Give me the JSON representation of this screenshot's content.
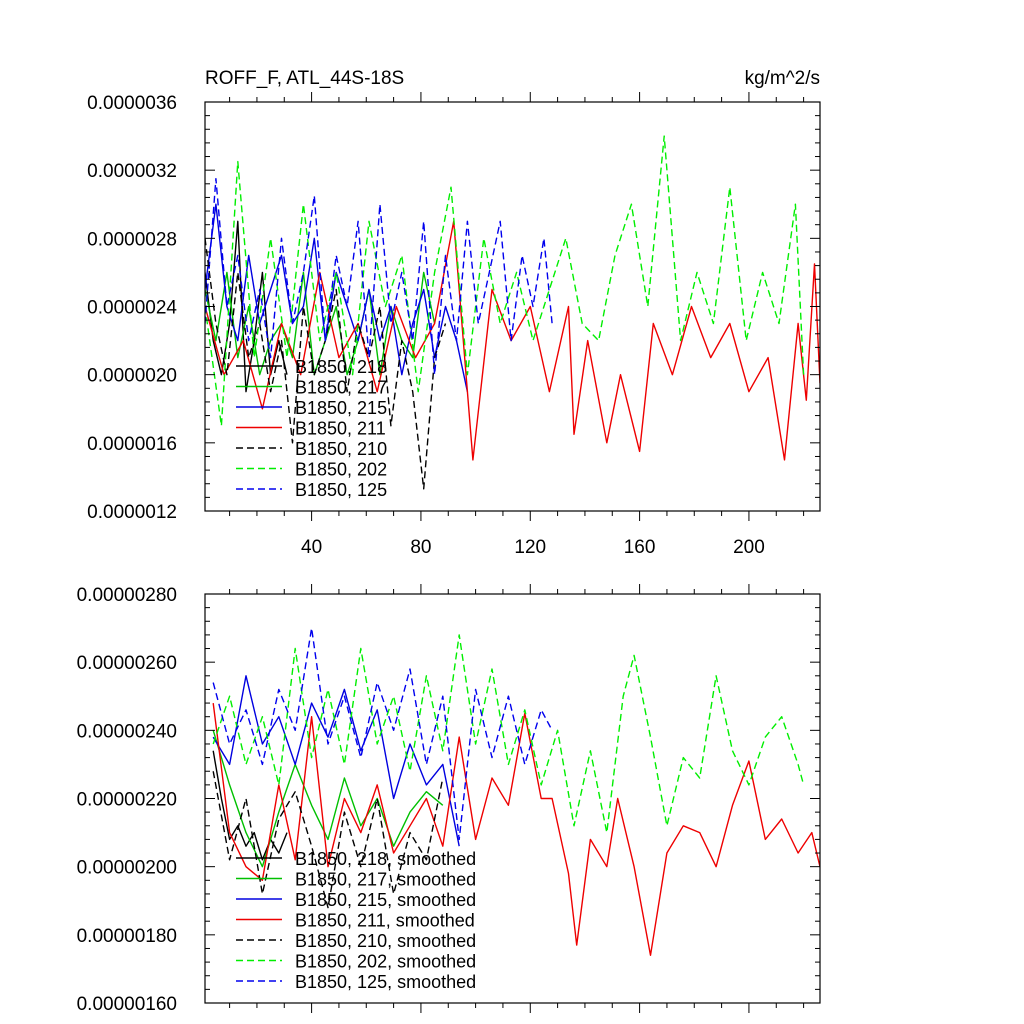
{
  "chart_data": [
    {
      "type": "line",
      "title": "ROFF_F, ATL_44S-18S",
      "units": "kg/m^2/s",
      "xlim": [
        1,
        226
      ],
      "ylim": [
        1.2e-06,
        3.6e-06
      ],
      "xticks": [
        40,
        80,
        120,
        160,
        200
      ],
      "xtick_labels": [
        "40",
        "80",
        "120",
        "160",
        "200"
      ],
      "yticks": [
        1.2e-06,
        1.6e-06,
        2e-06,
        2.4e-06,
        2.8e-06,
        3.2e-06,
        3.6e-06
      ],
      "ytick_labels": [
        "0.0000012",
        "0.0000016",
        "0.0000020",
        "0.0000024",
        "0.0000028",
        "0.0000032",
        "0.0000036"
      ],
      "legend_position": "bottom-left",
      "series": [
        {
          "name": "B1850, 218",
          "color": "#000000",
          "dash": "solid",
          "x": [
            1,
            4,
            7,
            10,
            13,
            16,
            19,
            22,
            25,
            28,
            31
          ],
          "y": [
            2.6e-06,
            2.2e-06,
            2e-06,
            2.3e-06,
            2.9e-06,
            1.9e-06,
            2.2e-06,
            2.6e-06,
            2e-06,
            2.2e-06,
            2e-06
          ]
        },
        {
          "name": "B1850, 217",
          "color": "#00c000",
          "dash": "solid",
          "x": [
            1,
            5,
            9,
            13,
            17,
            21,
            25,
            29,
            33,
            37,
            41,
            45,
            49,
            53,
            57,
            61,
            65,
            69,
            73,
            77,
            81,
            85
          ],
          "y": [
            2.5e-06,
            2.2e-06,
            2.6e-06,
            2.1e-06,
            2.4e-06,
            2e-06,
            2.2e-06,
            2.3e-06,
            2.1e-06,
            2.6e-06,
            2e-06,
            2.2e-06,
            2.4e-06,
            2e-06,
            2.2e-06,
            2.5e-06,
            2e-06,
            2.4e-06,
            2.2e-06,
            2.1e-06,
            2.6e-06,
            2.3e-06
          ]
        },
        {
          "name": "B1850, 215",
          "color": "#0000e0",
          "dash": "solid",
          "x": [
            1,
            5,
            9,
            13,
            17,
            21,
            25,
            29,
            33,
            37,
            41,
            45,
            49,
            53,
            57,
            61,
            65,
            69,
            73,
            77,
            81,
            85,
            89,
            93,
            97
          ],
          "y": [
            2.5e-06,
            3e-06,
            2.4e-06,
            2.2e-06,
            2.7e-06,
            2.3e-06,
            2.5e-06,
            2.7e-06,
            2.3e-06,
            2.4e-06,
            2.8e-06,
            2.2e-06,
            2.6e-06,
            2.4e-06,
            2.2e-06,
            2.5e-06,
            2.2e-06,
            2.4e-06,
            2e-06,
            2.3e-06,
            2.5e-06,
            2.1e-06,
            2.4e-06,
            2.2e-06,
            1.9e-06
          ]
        },
        {
          "name": "B1850, 211",
          "color": "#ee0000",
          "dash": "solid",
          "x": [
            1,
            8,
            15,
            22,
            29,
            36,
            43,
            50,
            57,
            64,
            71,
            78,
            85,
            92,
            99,
            106,
            113,
            120,
            127,
            134,
            136,
            141,
            148,
            153,
            160,
            165,
            172,
            179,
            186,
            193,
            200,
            207,
            213,
            218,
            221,
            224,
            226
          ],
          "y": [
            2.4e-06,
            2e-06,
            2.2e-06,
            1.8e-06,
            2.3e-06,
            2e-06,
            2.6e-06,
            2.1e-06,
            2.3e-06,
            1.9e-06,
            2.4e-06,
            2.1e-06,
            2.3e-06,
            2.9e-06,
            1.5e-06,
            2.5e-06,
            2.2e-06,
            2.4e-06,
            1.9e-06,
            2.4e-06,
            1.65e-06,
            2.2e-06,
            1.6e-06,
            2e-06,
            1.55e-06,
            2.3e-06,
            2e-06,
            2.4e-06,
            2.1e-06,
            2.3e-06,
            1.9e-06,
            2.1e-06,
            1.5e-06,
            2.3e-06,
            1.85e-06,
            2.65e-06,
            1.95e-06
          ]
        },
        {
          "name": "B1850, 210",
          "color": "#000000",
          "dash": "dashed",
          "x": [
            1,
            5,
            9,
            13,
            17,
            21,
            25,
            29,
            33,
            37,
            41,
            45,
            49,
            53,
            57,
            61,
            65,
            69,
            73,
            77,
            81,
            85,
            89
          ],
          "y": [
            2.8e-06,
            2.3e-06,
            2e-06,
            2.6e-06,
            2.1e-06,
            2.3e-06,
            1.9e-06,
            2.2e-06,
            1.6e-06,
            2.4e-06,
            2e-06,
            2.2e-06,
            2.5e-06,
            1.9e-06,
            2.3e-06,
            2.1e-06,
            2.4e-06,
            1.7e-06,
            2.2e-06,
            1.9e-06,
            1.33e-06,
            2.1e-06,
            2.3e-06
          ]
        },
        {
          "name": "B1850, 202",
          "color": "#00ee00",
          "dash": "dashed",
          "x": [
            1,
            7,
            13,
            19,
            25,
            31,
            37,
            43,
            49,
            55,
            61,
            67,
            73,
            79,
            85,
            91,
            97,
            103,
            109,
            115,
            121,
            127,
            133,
            139,
            145,
            151,
            157,
            163,
            169,
            175,
            181,
            187,
            193,
            199,
            205,
            211,
            217,
            220
          ],
          "y": [
            2.4e-06,
            1.7e-06,
            3.25e-06,
            2.1e-06,
            2.8e-06,
            2.1e-06,
            3e-06,
            2.2e-06,
            2.6e-06,
            2e-06,
            2.9e-06,
            2.4e-06,
            2.7e-06,
            1.9e-06,
            2.6e-06,
            3.1e-06,
            2e-06,
            2.8e-06,
            2.3e-06,
            2.6e-06,
            2.2e-06,
            2.5e-06,
            2.8e-06,
            2.3e-06,
            2.2e-06,
            2.7e-06,
            3e-06,
            2.4e-06,
            3.4e-06,
            2.2e-06,
            2.6e-06,
            2.3e-06,
            3.1e-06,
            2.2e-06,
            2.6e-06,
            2.3e-06,
            3e-06,
            2e-06
          ]
        },
        {
          "name": "B1850, 125",
          "color": "#0000ee",
          "dash": "dashed",
          "x": [
            1,
            5,
            9,
            13,
            17,
            21,
            25,
            29,
            33,
            37,
            41,
            45,
            49,
            53,
            57,
            61,
            65,
            69,
            73,
            77,
            81,
            85,
            89,
            93,
            97,
            101,
            105,
            109,
            113,
            117,
            121,
            125,
            128
          ],
          "y": [
            2.3e-06,
            3.15e-06,
            2.4e-06,
            2.7e-06,
            2.2e-06,
            2.5e-06,
            2.1e-06,
            2.8e-06,
            2.3e-06,
            2.6e-06,
            3.05e-06,
            2.2e-06,
            2.7e-06,
            2.4e-06,
            2.9e-06,
            2.1e-06,
            3e-06,
            2.3e-06,
            2.6e-06,
            2.2e-06,
            2.9e-06,
            2e-06,
            2.7e-06,
            2.2e-06,
            2.9e-06,
            2.3e-06,
            2.6e-06,
            2.9e-06,
            2.2e-06,
            2.7e-06,
            2.4e-06,
            2.8e-06,
            2.3e-06
          ]
        }
      ]
    },
    {
      "type": "line",
      "title": "",
      "xlim": [
        1,
        226
      ],
      "ylim": [
        1.6e-06,
        2.8e-06
      ],
      "xticks": [
        40,
        80,
        120,
        160,
        200
      ],
      "xtick_labels": [],
      "yticks": [
        1.6e-06,
        1.8e-06,
        2e-06,
        2.2e-06,
        2.4e-06,
        2.6e-06,
        2.8e-06
      ],
      "ytick_labels": [
        "0.00000160",
        "0.00000180",
        "0.00000200",
        "0.00000220",
        "0.00000240",
        "0.00000260",
        "0.00000280"
      ],
      "legend_position": "bottom-left",
      "series": [
        {
          "name": "B1850, 218, smoothed",
          "color": "#000000",
          "dash": "solid",
          "x": [
            4,
            7,
            10,
            13,
            16,
            19,
            22,
            25,
            28,
            31
          ],
          "y": [
            2.34e-06,
            2.2e-06,
            2.08e-06,
            2.12e-06,
            2.06e-06,
            2.1e-06,
            2.02e-06,
            2.08e-06,
            2.04e-06,
            2.1e-06
          ]
        },
        {
          "name": "B1850, 217, smoothed",
          "color": "#00c000",
          "dash": "solid",
          "x": [
            4,
            10,
            16,
            22,
            28,
            34,
            40,
            46,
            52,
            58,
            64,
            70,
            76,
            82,
            88
          ],
          "y": [
            2.4e-06,
            2.24e-06,
            2.1e-06,
            2e-06,
            2.16e-06,
            2.3e-06,
            2.18e-06,
            2.08e-06,
            2.26e-06,
            2.12e-06,
            2.2e-06,
            2.06e-06,
            2.16e-06,
            2.22e-06,
            2.18e-06
          ]
        },
        {
          "name": "B1850, 215, smoothed",
          "color": "#0000e0",
          "dash": "solid",
          "x": [
            4,
            10,
            16,
            22,
            28,
            34,
            40,
            46,
            52,
            58,
            64,
            70,
            76,
            82,
            88,
            94
          ],
          "y": [
            2.38e-06,
            2.3e-06,
            2.56e-06,
            2.36e-06,
            2.44e-06,
            2.3e-06,
            2.48e-06,
            2.38e-06,
            2.52e-06,
            2.34e-06,
            2.46e-06,
            2.2e-06,
            2.36e-06,
            2.24e-06,
            2.3e-06,
            2.06e-06
          ]
        },
        {
          "name": "B1850, 211, smoothed",
          "color": "#ee0000",
          "dash": "solid",
          "x": [
            4,
            10,
            16,
            22,
            28,
            34,
            40,
            46,
            52,
            58,
            64,
            70,
            76,
            82,
            88,
            94,
            100,
            106,
            112,
            118,
            124,
            128,
            134,
            137,
            142,
            148,
            152,
            158,
            164,
            170,
            176,
            182,
            188,
            194,
            200,
            206,
            212,
            218,
            223,
            226
          ],
          "y": [
            2.48e-06,
            2.1e-06,
            2e-06,
            1.96e-06,
            2.24e-06,
            2.02e-06,
            2.44e-06,
            2e-06,
            2.2e-06,
            2.1e-06,
            2.24e-06,
            2.04e-06,
            2.12e-06,
            2.2e-06,
            2.06e-06,
            2.38e-06,
            2.08e-06,
            2.26e-06,
            2.18e-06,
            2.45e-06,
            2.2e-06,
            2.2e-06,
            1.98e-06,
            1.77e-06,
            2.08e-06,
            2e-06,
            2.2e-06,
            2e-06,
            1.74e-06,
            2.04e-06,
            2.12e-06,
            2.1e-06,
            2e-06,
            2.18e-06,
            2.31e-06,
            2.08e-06,
            2.14e-06,
            2.04e-06,
            2.1e-06,
            2e-06
          ]
        },
        {
          "name": "B1850, 210, smoothed",
          "color": "#000000",
          "dash": "dashed",
          "x": [
            4,
            10,
            16,
            22,
            28,
            34,
            40,
            46,
            52,
            58,
            64,
            70,
            76,
            82,
            88
          ],
          "y": [
            2.28e-06,
            2.02e-06,
            2.2e-06,
            1.92e-06,
            2.14e-06,
            2.22e-06,
            2.06e-06,
            1.88e-06,
            2.16e-06,
            2e-06,
            2.2e-06,
            1.92e-06,
            2.1e-06,
            2.02e-06,
            2.26e-06
          ]
        },
        {
          "name": "B1850, 202, smoothed",
          "color": "#00ee00",
          "dash": "dashed",
          "x": [
            4,
            10,
            16,
            22,
            28,
            34,
            40,
            46,
            52,
            58,
            64,
            70,
            76,
            82,
            88,
            94,
            100,
            106,
            112,
            118,
            124,
            130,
            136,
            142,
            148,
            154,
            158,
            164,
            170,
            176,
            182,
            188,
            194,
            200,
            206,
            212,
            218,
            220
          ],
          "y": [
            2.36e-06,
            2.5e-06,
            2.3e-06,
            2.44e-06,
            2.24e-06,
            2.64e-06,
            2.32e-06,
            2.52e-06,
            2.3e-06,
            2.64e-06,
            2.36e-06,
            2.5e-06,
            2.28e-06,
            2.56e-06,
            2.34e-06,
            2.68e-06,
            2.36e-06,
            2.58e-06,
            2.3e-06,
            2.46e-06,
            2.24e-06,
            2.4e-06,
            2.12e-06,
            2.34e-06,
            2.1e-06,
            2.5e-06,
            2.62e-06,
            2.38e-06,
            2.12e-06,
            2.32e-06,
            2.26e-06,
            2.56e-06,
            2.34e-06,
            2.24e-06,
            2.38e-06,
            2.44e-06,
            2.3e-06,
            2.24e-06
          ]
        },
        {
          "name": "B1850, 125, smoothed",
          "color": "#0000ee",
          "dash": "dashed",
          "x": [
            4,
            10,
            16,
            22,
            28,
            34,
            40,
            46,
            52,
            58,
            64,
            70,
            76,
            82,
            88,
            94,
            100,
            106,
            112,
            118,
            124,
            128
          ],
          "y": [
            2.54e-06,
            2.36e-06,
            2.46e-06,
            2.3e-06,
            2.52e-06,
            2.4e-06,
            2.7e-06,
            2.36e-06,
            2.5e-06,
            2.32e-06,
            2.54e-06,
            2.4e-06,
            2.58e-06,
            2.3e-06,
            2.5e-06,
            2.08e-06,
            2.52e-06,
            2.32e-06,
            2.5e-06,
            2.3e-06,
            2.46e-06,
            2.4e-06
          ]
        }
      ]
    }
  ]
}
